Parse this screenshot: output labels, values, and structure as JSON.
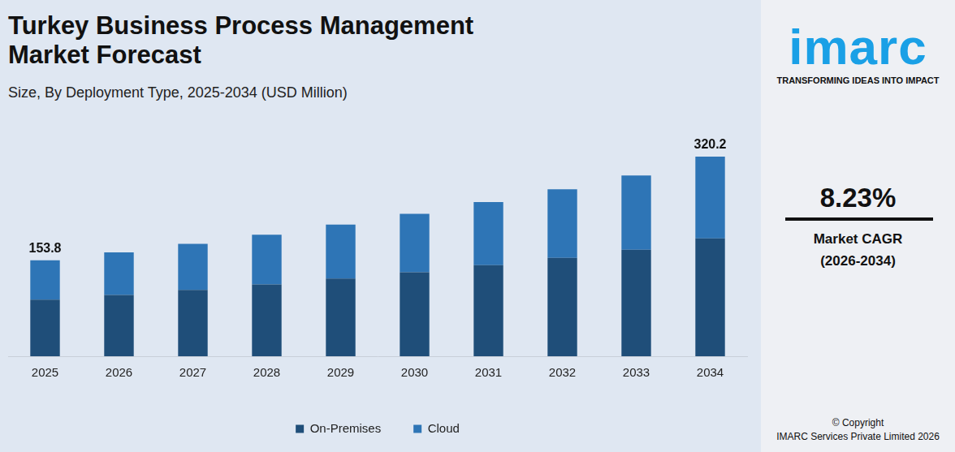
{
  "chart_data": {
    "type": "bar",
    "title": "Turkey Business Process Management Market Forecast",
    "subtitle": "Size, By Deployment Type, 2025-2034 (USD Million)",
    "categories": [
      "2025",
      "2026",
      "2027",
      "2028",
      "2029",
      "2030",
      "2031",
      "2032",
      "2033",
      "2034"
    ],
    "series": [
      {
        "name": "On-Premises",
        "color": "#1f4e79",
        "values": [
          90.7,
          98.2,
          106.3,
          115.1,
          124.5,
          134.8,
          145.9,
          157.9,
          170.9,
          188.9
        ]
      },
      {
        "name": "Cloud",
        "color": "#2e75b6",
        "values": [
          63.1,
          68.3,
          73.9,
          79.9,
          86.6,
          93.7,
          101.4,
          109.7,
          118.8,
          131.3
        ]
      }
    ],
    "annotations": [
      {
        "x": "2025",
        "y": 153.8,
        "label": "153.8"
      },
      {
        "x": "2034",
        "y": 320.2,
        "label": "320.2"
      }
    ],
    "ylim": [
      0,
      350
    ],
    "stacked": true,
    "grid": false,
    "legend": "bottom",
    "data_labels": false,
    "tick_labels": "x",
    "side_panel": {
      "brand": "imarc",
      "tagline": "TRANSFORMING IDEAS INTO IMPACT",
      "cagr": {
        "value": 8.23,
        "label": "8.23%"
      },
      "cagr_label": "Market CAGR",
      "cagr_period": "(2026-2034)",
      "copyright": [
        "© Copyright",
        "IMARC Services Private Limited 2026"
      ]
    }
  }
}
